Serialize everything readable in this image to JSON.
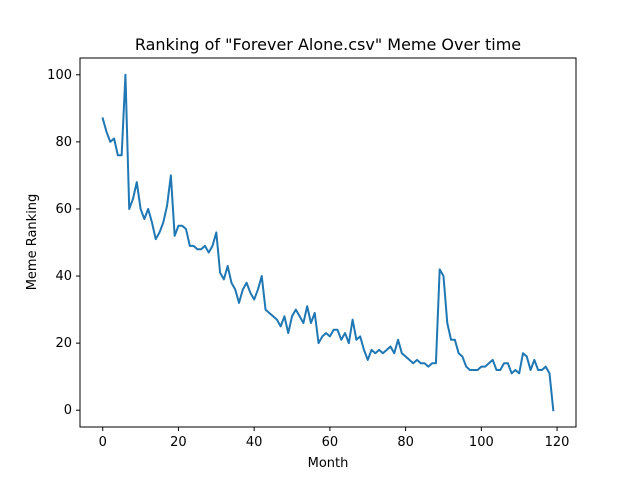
{
  "chart_data": {
    "type": "line",
    "title": "Ranking of \"Forever Alone.csv\" Meme Over time",
    "xlabel": "Month",
    "ylabel": "Meme Ranking",
    "xlim": [
      -6,
      125
    ],
    "ylim": [
      -5,
      105
    ],
    "xticks": [
      0,
      20,
      40,
      60,
      80,
      100,
      120
    ],
    "yticks": [
      0,
      20,
      40,
      60,
      80,
      100
    ],
    "xtick_labels": [
      "0",
      "20",
      "40",
      "60",
      "80",
      "100",
      "120"
    ],
    "ytick_labels": [
      "0",
      "20",
      "40",
      "60",
      "80",
      "100"
    ],
    "grid": false,
    "legend": "none",
    "line_color": "#1f77b4",
    "series": [
      {
        "x": [
          0,
          1,
          2,
          3,
          4,
          5,
          6,
          7,
          8,
          9,
          10,
          11,
          12,
          13,
          14,
          15,
          16,
          17,
          18,
          19,
          20,
          21,
          22,
          23,
          24,
          25,
          26,
          27,
          28,
          29,
          30,
          31,
          32,
          33,
          34,
          35,
          36,
          37,
          38,
          39,
          40,
          41,
          42,
          43,
          44,
          45,
          46,
          47,
          48,
          49,
          50,
          51,
          52,
          53,
          54,
          55,
          56,
          57,
          58,
          59,
          60,
          61,
          62,
          63,
          64,
          65,
          66,
          67,
          68,
          69,
          70,
          71,
          72,
          73,
          74,
          75,
          76,
          77,
          78,
          79,
          80,
          81,
          82,
          83,
          84,
          85,
          86,
          87,
          88,
          89,
          90,
          91,
          92,
          93,
          94,
          95,
          96,
          97,
          98,
          99,
          100,
          101,
          102,
          103,
          104,
          105,
          106,
          107,
          108,
          109,
          110,
          111,
          112,
          113,
          114,
          115,
          116,
          117,
          118,
          119
        ],
        "y": [
          87,
          83,
          80,
          81,
          76,
          76,
          100,
          60,
          63,
          68,
          60,
          57,
          60,
          56,
          51,
          53,
          56,
          61,
          70,
          52,
          55,
          55,
          54,
          49,
          49,
          48,
          48,
          49,
          47,
          49,
          53,
          41,
          39,
          43,
          38,
          36,
          32,
          36,
          38,
          35,
          33,
          36,
          40,
          30,
          29,
          28,
          27,
          25,
          28,
          23,
          28,
          30,
          28,
          26,
          31,
          26,
          29,
          20,
          22,
          23,
          22,
          24,
          24,
          21,
          23,
          20,
          27,
          21,
          22,
          18,
          15,
          18,
          17,
          18,
          17,
          18,
          19,
          17,
          21,
          17,
          16,
          15,
          14,
          15,
          14,
          14,
          13,
          14,
          14,
          42,
          40,
          26,
          21,
          21,
          17,
          16,
          13,
          12,
          12,
          12,
          13,
          13,
          14,
          15,
          12,
          12,
          14,
          14,
          11,
          12,
          11,
          17,
          16,
          12,
          15,
          12,
          12,
          13,
          11,
          0
        ]
      }
    ]
  }
}
